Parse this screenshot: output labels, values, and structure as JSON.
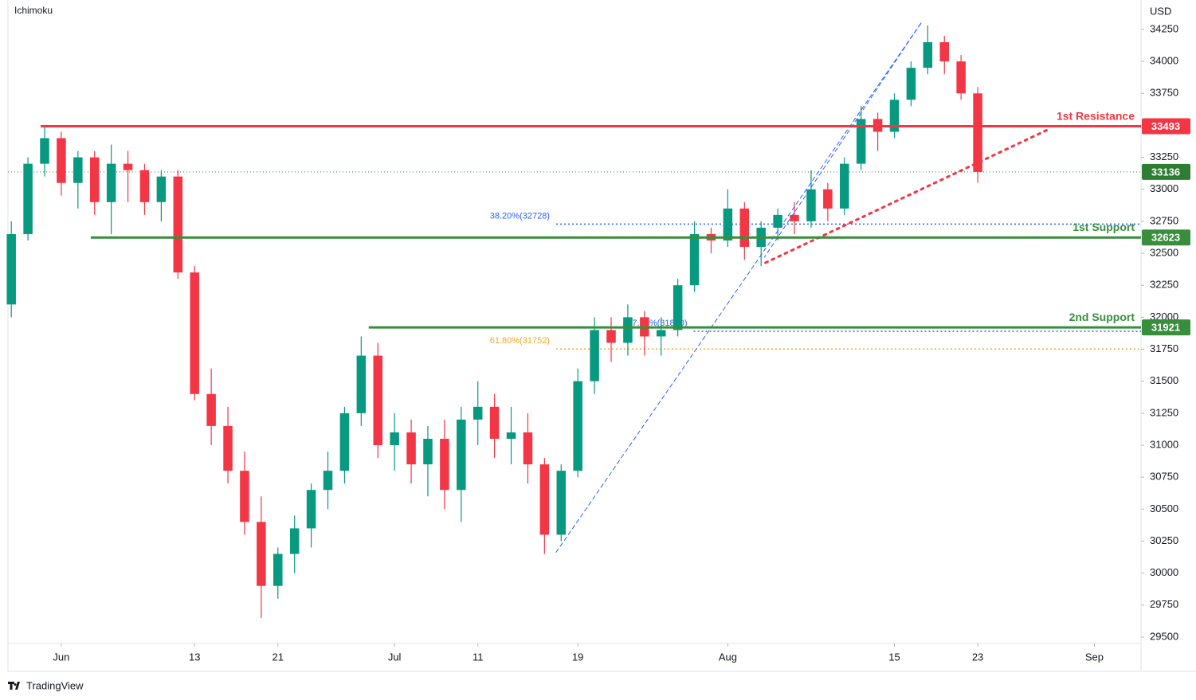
{
  "chart_data": {
    "type": "candlestick",
    "indicator": "Ichimoku",
    "currency": "USD",
    "source": "TradingView",
    "up_color": "#089981",
    "down_color": "#f23645",
    "x": [
      -3,
      -2,
      -1,
      0,
      1,
      2,
      3,
      4,
      5,
      6,
      7,
      8,
      9,
      10,
      11,
      12,
      13,
      14,
      15,
      16,
      17,
      18,
      19,
      20,
      21,
      22,
      23,
      24,
      25,
      26,
      27,
      28,
      29,
      30,
      31,
      32,
      33,
      34,
      35,
      36,
      37,
      38,
      39,
      40,
      41,
      42,
      43,
      44,
      45,
      46,
      47,
      48,
      49,
      50,
      51,
      52,
      53,
      54,
      55
    ],
    "open": [
      32100,
      32650,
      33200,
      33400,
      33050,
      33250,
      32900,
      33200,
      33150,
      32900,
      33100,
      32350,
      31400,
      31150,
      30800,
      30400,
      29900,
      30150,
      30350,
      30650,
      30800,
      31250,
      31700,
      31000,
      31100,
      30850,
      31050,
      30650,
      31200,
      31300,
      31050,
      31100,
      30850,
      30300,
      30800,
      31500,
      31900,
      31800,
      32000,
      31850,
      31900,
      32250,
      32650,
      32600,
      32850,
      32550,
      32700,
      32800,
      32750,
      33000,
      32850,
      33200,
      33550,
      33450,
      33700,
      33950,
      34150,
      34000,
      33750
    ],
    "high": [
      32750,
      33250,
      33500,
      33450,
      33300,
      33300,
      33350,
      33300,
      33200,
      33150,
      33150,
      32400,
      31600,
      31300,
      30950,
      30600,
      30200,
      30450,
      30700,
      30950,
      31300,
      31850,
      31800,
      31250,
      31200,
      31150,
      31200,
      31300,
      31500,
      31400,
      31300,
      31250,
      30900,
      30850,
      31600,
      32000,
      32000,
      32100,
      32050,
      32000,
      32300,
      32750,
      32700,
      33000,
      32900,
      32750,
      32850,
      32900,
      33150,
      33050,
      33250,
      33650,
      33600,
      33750,
      34000,
      34280,
      34200,
      34050,
      33800
    ],
    "low": [
      32000,
      32600,
      33100,
      32950,
      32850,
      32800,
      32650,
      32900,
      32800,
      32750,
      32300,
      31350,
      31000,
      30700,
      30300,
      29650,
      29800,
      30000,
      30200,
      30500,
      30700,
      31150,
      30900,
      30800,
      30700,
      30600,
      30500,
      30400,
      31000,
      30900,
      30850,
      30700,
      30150,
      30250,
      30750,
      31400,
      31650,
      31700,
      31700,
      31700,
      31850,
      32200,
      32500,
      32550,
      32450,
      32400,
      32600,
      32650,
      32700,
      32750,
      32800,
      33150,
      33300,
      33400,
      33650,
      33900,
      33900,
      33700,
      33050
    ],
    "close": [
      32650,
      33200,
      33400,
      33050,
      33250,
      32900,
      33200,
      33150,
      32900,
      33100,
      32350,
      31400,
      31150,
      30800,
      30400,
      29900,
      30150,
      30350,
      30650,
      30800,
      31250,
      31700,
      31000,
      31100,
      30850,
      31050,
      30650,
      31200,
      31300,
      31050,
      31100,
      30850,
      30300,
      30800,
      31500,
      31900,
      31800,
      32000,
      31850,
      31900,
      32250,
      32650,
      32600,
      32850,
      32550,
      32700,
      32800,
      32750,
      33000,
      32850,
      33200,
      33550,
      33450,
      33700,
      33950,
      34150,
      34000,
      33750,
      33136
    ],
    "xlim": [
      -3.2,
      64.8
    ],
    "ylim": [
      29450,
      34480
    ],
    "yticks": [
      29500,
      29750,
      30000,
      30250,
      30500,
      30750,
      31000,
      31250,
      31500,
      31750,
      32000,
      32250,
      32500,
      32750,
      33000,
      33250,
      33500,
      33750,
      34000,
      34250
    ],
    "xticks": [
      {
        "value": 0,
        "label": "Jun"
      },
      {
        "value": 8,
        "label": "13"
      },
      {
        "value": 13,
        "label": "21"
      },
      {
        "value": 20,
        "label": "Jul"
      },
      {
        "value": 25,
        "label": "11"
      },
      {
        "value": 31,
        "label": "19"
      },
      {
        "value": 40,
        "label": "Aug"
      },
      {
        "value": 50,
        "label": "15"
      },
      {
        "value": 55,
        "label": "23"
      },
      {
        "value": 62,
        "label": "Sep"
      }
    ],
    "levels": [
      {
        "name": "1st Resistance",
        "value": 33493,
        "color": "#f23645",
        "start": -1.24
      },
      {
        "name": "1st Support",
        "value": 32623,
        "color": "#388e3c",
        "start": 1.77
      },
      {
        "name": "2nd Support",
        "value": 31921,
        "color": "#388e3c",
        "start": 18.45
      }
    ],
    "fib_levels": [
      {
        "label": "38.20%(32728)",
        "value": 32728,
        "color": "#2962ff",
        "start": 29.7
      },
      {
        "label": "61.80%(31752)",
        "value": 31752,
        "color": "#f5a623",
        "start": 29.7
      },
      {
        "label": "127.20%(31890)",
        "value": 31890,
        "color": "#2962ff",
        "start": 37.95
      }
    ],
    "current_price": {
      "value": 33136,
      "color": "#2e7d32"
    },
    "trendlines": [
      {
        "x": [
          29.7,
          51.6
        ],
        "y": [
          30163,
          34300
        ],
        "color": "#2962ff",
        "style": "dashed"
      },
      {
        "x": [
          51.6,
          42.2
        ],
        "y": [
          34300,
          32470
        ],
        "color": "#2962ff",
        "style": "dashed"
      },
      {
        "x": [
          42.26,
          59.2
        ],
        "y": [
          32426,
          33466
        ],
        "color": "#f23645",
        "style": "dotted"
      }
    ]
  }
}
